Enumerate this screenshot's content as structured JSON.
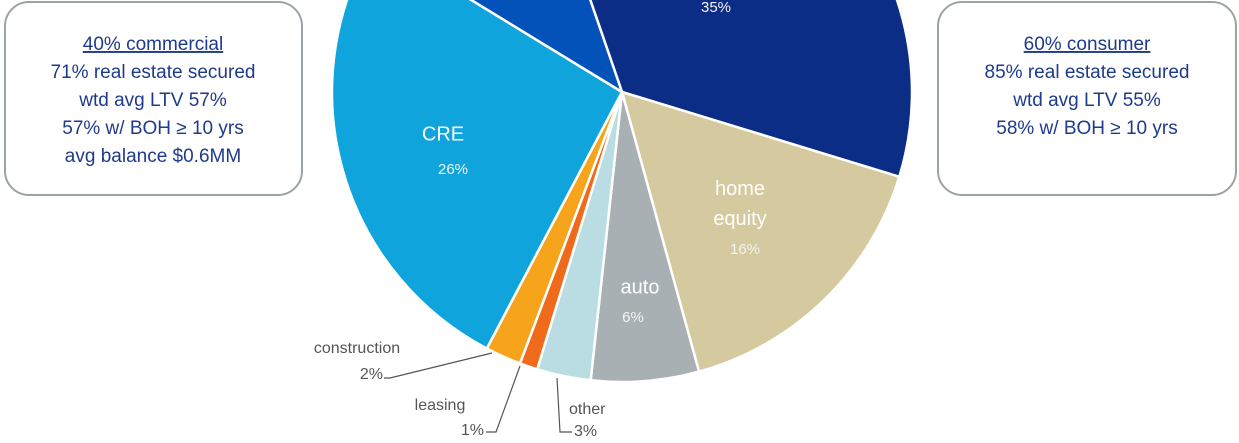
{
  "chart_data": {
    "type": "pie",
    "categories": [
      null,
      "home equity",
      "auto",
      "other",
      "leasing",
      "construction",
      "CRE",
      null
    ],
    "values": [
      35,
      16,
      6,
      3,
      1,
      2,
      26,
      11
    ],
    "value_labels": [
      "35%",
      "16%",
      "6%",
      "3%",
      "1%",
      "2%",
      "26%",
      null
    ],
    "colors": [
      "#0b2d86",
      "#d4c99f",
      "#a8b0b3",
      "#b9dde3",
      "#f06a1c",
      "#f5a41b",
      "#0fa5dc",
      "#0352ba"
    ]
  },
  "left_box": {
    "title": "40% commercial",
    "lines": [
      "71% real estate secured",
      "wtd avg LTV 57%",
      "57% w/ BOH ≥ 10 yrs",
      "avg balance $0.6MM"
    ]
  },
  "right_box": {
    "title": "60% consumer",
    "lines": [
      "85% real estate secured",
      "wtd avg LTV 55%",
      "58% w/ BOH ≥ 10 yrs"
    ]
  }
}
